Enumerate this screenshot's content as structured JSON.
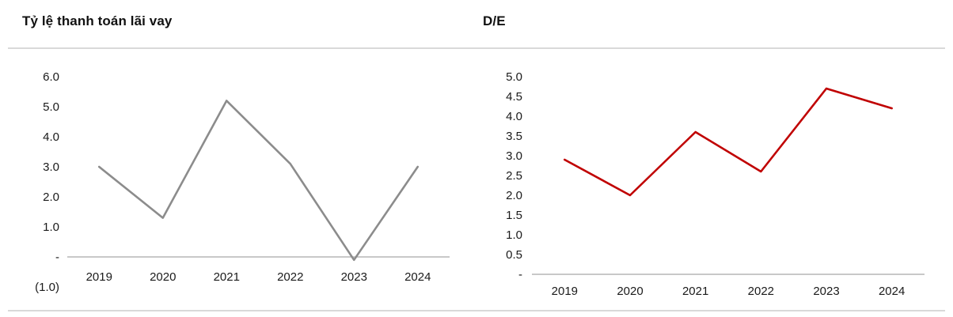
{
  "page": {
    "background": "#ffffff",
    "divider_color": "#d9d9d9"
  },
  "chart_data": [
    {
      "type": "line",
      "title": "Tỷ lệ thanh toán lãi vay",
      "categories": [
        "2019",
        "2020",
        "2021",
        "2022",
        "2023",
        "2024"
      ],
      "values": [
        3.0,
        1.3,
        5.2,
        3.1,
        -0.1,
        3.0
      ],
      "ylim": [
        -1.0,
        6.0
      ],
      "ytick_step": 1.0,
      "ytick_labels": [
        "(1.0)",
        "-",
        "1.0",
        "2.0",
        "3.0",
        "4.0",
        "5.0",
        "6.0"
      ],
      "axis_line_at": 0,
      "color": "#8c8c8c",
      "legend": "none",
      "grid": false,
      "xlabel": "",
      "ylabel": ""
    },
    {
      "type": "line",
      "title": "D/E",
      "categories": [
        "2019",
        "2020",
        "2021",
        "2022",
        "2023",
        "2024"
      ],
      "values": [
        2.9,
        2.0,
        3.6,
        2.6,
        4.7,
        4.2
      ],
      "ylim": [
        0,
        5.0
      ],
      "ytick_step": 0.5,
      "ytick_labels": [
        "-",
        "0.5",
        "1.0",
        "1.5",
        "2.0",
        "2.5",
        "3.0",
        "3.5",
        "4.0",
        "4.5",
        "5.0"
      ],
      "axis_line_at": 0,
      "color": "#c00000",
      "legend": "none",
      "grid": false,
      "xlabel": "",
      "ylabel": ""
    }
  ]
}
